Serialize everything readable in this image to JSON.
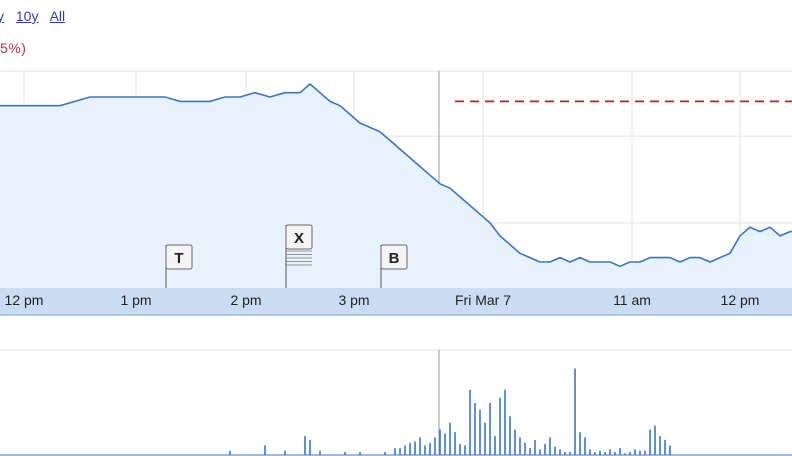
{
  "zoom": {
    "links": [
      {
        "label": "y",
        "key": "partial"
      },
      {
        "label": "10y",
        "key": "10y"
      },
      {
        "label": "All",
        "key": "all"
      }
    ]
  },
  "change_text": "5%)",
  "colors": {
    "line": "#3b74c4",
    "fill": "#e8f2fc",
    "ref_line": "#a52a2a",
    "axis_band": "#c9dcf2",
    "grid": "#e2e2e2",
    "volume": "#3b74c4"
  },
  "chart_data": [
    {
      "type": "area",
      "title": "",
      "xlabel": "",
      "ylabel": "",
      "x_tick_labels": [
        "12 pm",
        "1 pm",
        "2 pm",
        "3 pm",
        "Fri Mar 7",
        "11 am",
        "12 pm"
      ],
      "grid": true,
      "reference_line": {
        "style": "dashed",
        "label": ""
      },
      "x": [
        0,
        3,
        6,
        9,
        12,
        15,
        18,
        21,
        24,
        27,
        30,
        33,
        36,
        39,
        42,
        45,
        48,
        51,
        54,
        57,
        60,
        62,
        64,
        66,
        68,
        70,
        72,
        74,
        76,
        78,
        80,
        82,
        84,
        86,
        88,
        90,
        92,
        94,
        96,
        98,
        100,
        102,
        104,
        106,
        108,
        110,
        112,
        114,
        116,
        118,
        120,
        122,
        124,
        126,
        128,
        130,
        132,
        134,
        136,
        138,
        140,
        142,
        144,
        146,
        148,
        150,
        152,
        154,
        156,
        158,
        160
      ],
      "values": [
        92,
        92,
        92,
        92,
        92,
        93,
        94,
        94,
        94,
        94,
        94,
        94,
        93,
        93,
        93,
        94,
        94,
        95,
        94,
        95,
        95,
        97,
        95,
        93,
        92,
        90,
        88,
        87,
        86,
        84,
        82,
        80,
        78,
        76,
        74,
        73,
        71,
        69,
        67,
        65,
        62,
        60,
        58,
        57,
        56,
        56,
        57,
        56,
        57,
        56,
        56,
        56,
        55,
        56,
        56,
        57,
        57,
        57,
        56,
        57,
        57,
        56,
        57,
        58,
        62,
        64,
        63,
        64,
        62,
        63,
        63
      ],
      "ylim": [
        50,
        100
      ],
      "flags": [
        {
          "label": "T",
          "x": 36
        },
        {
          "label": "X",
          "x": 60
        },
        {
          "label": "B",
          "x": 79
        }
      ]
    },
    {
      "type": "bar",
      "title": "",
      "xlabel": "",
      "ylabel": "",
      "x": [
        46,
        53,
        57,
        61,
        62,
        64,
        69,
        72,
        77,
        79,
        80,
        81,
        82,
        83,
        84,
        85,
        86,
        87,
        88,
        89,
        90,
        91,
        92,
        93,
        94,
        95,
        96,
        97,
        98,
        99,
        100,
        101,
        102,
        103,
        104,
        105,
        106,
        107,
        108,
        109,
        110,
        111,
        112,
        113,
        114,
        115,
        116,
        117,
        118,
        119,
        120,
        121,
        122,
        123,
        124,
        125,
        126,
        127,
        128,
        129,
        130,
        131,
        132,
        133,
        134
      ],
      "values": [
        4,
        8,
        4,
        15,
        12,
        4,
        3,
        3,
        3,
        6,
        6,
        8,
        10,
        11,
        14,
        8,
        10,
        14,
        20,
        17,
        25,
        18,
        9,
        8,
        50,
        40,
        35,
        25,
        40,
        15,
        44,
        50,
        30,
        20,
        14,
        10,
        6,
        12,
        5,
        9,
        14,
        7,
        5,
        3,
        3,
        66,
        18,
        14,
        5,
        3,
        4,
        3,
        5,
        3,
        6,
        2,
        3,
        5,
        4,
        4,
        20,
        23,
        15,
        12,
        8
      ],
      "ylim": [
        0,
        80
      ]
    }
  ]
}
